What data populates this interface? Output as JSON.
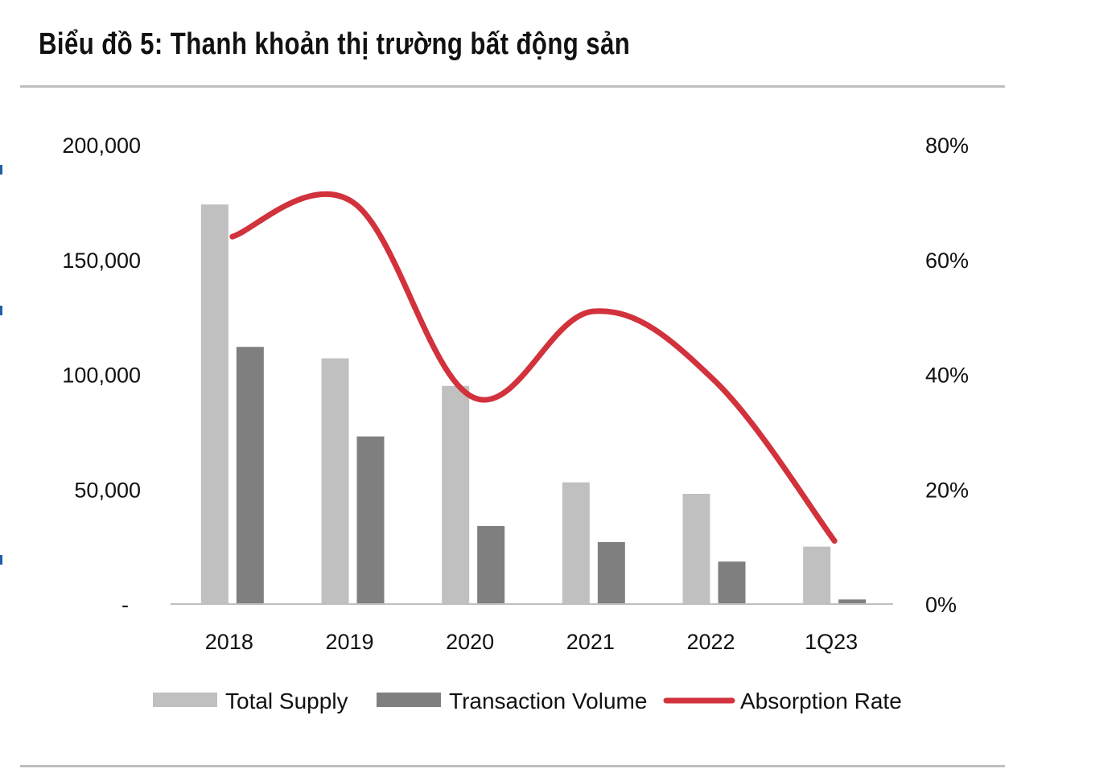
{
  "title": "Biểu đồ 5: Thanh khoản thị trường bất động sản",
  "colors": {
    "total_supply": "#c0c0c0",
    "transaction_volume": "#7f7f7f",
    "absorption_rate": "#d2323c",
    "axis": "#bfbfbf"
  },
  "chart_data": {
    "type": "bar",
    "categories": [
      "2018",
      "2019",
      "2020",
      "2021",
      "2022",
      "1Q23"
    ],
    "series": [
      {
        "name": "Total Supply",
        "type": "bar",
        "axis": "left",
        "values": [
          174000,
          107000,
          95000,
          53000,
          48000,
          25000
        ]
      },
      {
        "name": "Transaction Volume",
        "type": "bar",
        "axis": "left",
        "values": [
          112000,
          73000,
          34000,
          27000,
          18500,
          2000
        ]
      },
      {
        "name": "Absorption Rate",
        "type": "line",
        "axis": "right",
        "values": [
          64,
          70,
          36,
          51,
          39,
          11
        ]
      }
    ],
    "y_left": {
      "min": 0,
      "max": 200000,
      "ticks": [
        0,
        50000,
        100000,
        150000,
        200000
      ],
      "tick_labels": [
        "-",
        "50,000",
        "100,000",
        "150,000",
        "200,000"
      ]
    },
    "y_right": {
      "min": 0,
      "max": 80,
      "ticks": [
        0,
        20,
        40,
        60,
        80
      ],
      "tick_labels": [
        "0%",
        "20%",
        "40%",
        "60%",
        "80%"
      ]
    },
    "grid": false,
    "legend_position": "bottom"
  }
}
